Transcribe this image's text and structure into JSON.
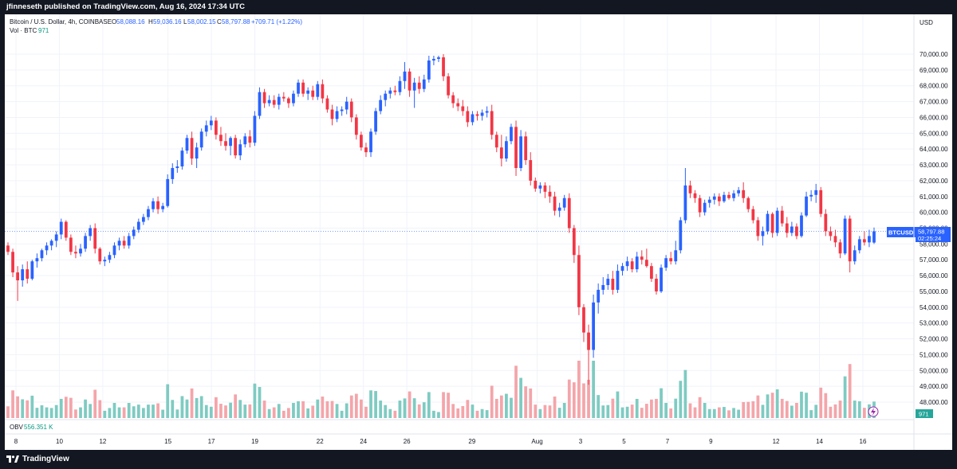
{
  "header": {
    "published": "jfinneseth published on TradingView.com, Aug 16, 2024 17:34 UTC"
  },
  "legend": {
    "symbol": "Bitcoin / U.S. Dollar, 4h, COINBASE",
    "o_label": "O",
    "o_value": "58,088.16",
    "h_label": "H",
    "h_value": "59,036.16",
    "l_label": "L",
    "l_value": "58,002.15",
    "c_label": "C",
    "c_value": "58,797.88",
    "change": "+709.71 (+1.22%)",
    "vol_label": "Vol · BTC",
    "vol_value": "971"
  },
  "price_axis": {
    "currency": "USD",
    "ticks": [
      "70,000.00",
      "69,000.00",
      "68,000.00",
      "67,000.00",
      "66,000.00",
      "65,000.00",
      "64,000.00",
      "63,000.00",
      "62,000.00",
      "61,000.00",
      "60,000.00",
      "59,000.00",
      "58,000.00",
      "57,000.00",
      "56,000.00",
      "55,000.00",
      "54,000.00",
      "53,000.00",
      "52,000.00",
      "51,000.00",
      "50,000.00",
      "49,000.00",
      "48,000.00"
    ],
    "last_symbol": "BTCUSD",
    "last_price": "58,797.88",
    "countdown": "02:25:24",
    "vol_badge": "971"
  },
  "obv": {
    "label": "OBV",
    "value": "556.351 K"
  },
  "time_axis": {
    "labels": [
      "8",
      "10",
      "12",
      "15",
      "17",
      "19",
      "22",
      "24",
      "26",
      "29",
      "Aug",
      "3",
      "5",
      "7",
      "9",
      "12",
      "14",
      "16"
    ]
  },
  "footer": {
    "brand": "TradingView"
  },
  "colors": {
    "up": "#2962ff",
    "down": "#f23645",
    "vol_up": "#7ecbc2",
    "vol_down": "#f4a5aa",
    "grid": "#f0f3fa",
    "text": "#131722",
    "legend_blue": "#2962ff",
    "obv_teal": "#089981"
  },
  "chart_data": {
    "type": "candlestick",
    "symbol": "BTCUSD",
    "interval": "4h",
    "x_start": "2024-07-07",
    "x_end": "2024-08-16",
    "ylim": [
      47500,
      71000
    ],
    "ohlc": [
      [
        57900,
        58100,
        57300,
        57500
      ],
      [
        57500,
        57700,
        55900,
        56200
      ],
      [
        56200,
        56600,
        54400,
        55700
      ],
      [
        55700,
        56700,
        55300,
        56400
      ],
      [
        56400,
        56900,
        55500,
        55800
      ],
      [
        55800,
        57000,
        55700,
        56900
      ],
      [
        56900,
        57400,
        56500,
        57100
      ],
      [
        57100,
        57700,
        56900,
        57600
      ],
      [
        57600,
        58100,
        57300,
        57900
      ],
      [
        57900,
        58300,
        57600,
        58200
      ],
      [
        58200,
        58800,
        57800,
        58600
      ],
      [
        58600,
        59600,
        58300,
        59400
      ],
      [
        59400,
        59500,
        58200,
        58400
      ],
      [
        58400,
        58600,
        57300,
        57500
      ],
      [
        57500,
        57900,
        57100,
        57400
      ],
      [
        57400,
        58000,
        57200,
        57700
      ],
      [
        57700,
        58700,
        57500,
        58500
      ],
      [
        58500,
        59200,
        58200,
        59000
      ],
      [
        59000,
        59300,
        57400,
        57700
      ],
      [
        57700,
        57800,
        56700,
        56900
      ],
      [
        56900,
        57200,
        56600,
        57000
      ],
      [
        57000,
        57500,
        56800,
        57300
      ],
      [
        57300,
        58100,
        57100,
        57900
      ],
      [
        57900,
        58400,
        57600,
        58200
      ],
      [
        58200,
        58500,
        57700,
        57900
      ],
      [
        57900,
        58700,
        57700,
        58500
      ],
      [
        58500,
        59100,
        58300,
        58900
      ],
      [
        58900,
        59600,
        58700,
        59400
      ],
      [
        59400,
        59900,
        59200,
        59700
      ],
      [
        59700,
        60400,
        59500,
        60200
      ],
      [
        60200,
        60900,
        60000,
        60700
      ],
      [
        60700,
        61000,
        59900,
        60200
      ],
      [
        60200,
        60600,
        60000,
        60400
      ],
      [
        60400,
        62400,
        60300,
        62100
      ],
      [
        62100,
        63100,
        61800,
        62800
      ],
      [
        62800,
        63300,
        62500,
        62900
      ],
      [
        62900,
        64100,
        62700,
        63900
      ],
      [
        63900,
        64900,
        63700,
        64700
      ],
      [
        64700,
        65100,
        63000,
        63400
      ],
      [
        63400,
        64400,
        62800,
        64100
      ],
      [
        64100,
        65300,
        63900,
        65100
      ],
      [
        65100,
        65800,
        64800,
        65500
      ],
      [
        65500,
        66100,
        65200,
        65800
      ],
      [
        65800,
        66000,
        64600,
        64900
      ],
      [
        64900,
        65400,
        64200,
        64500
      ],
      [
        64500,
        65000,
        63900,
        64200
      ],
      [
        64200,
        64800,
        63600,
        64700
      ],
      [
        64700,
        64900,
        63400,
        63600
      ],
      [
        63600,
        64600,
        63300,
        64300
      ],
      [
        64300,
        65000,
        64100,
        64800
      ],
      [
        64800,
        65200,
        64100,
        64400
      ],
      [
        64400,
        66400,
        64200,
        66100
      ],
      [
        66100,
        67900,
        65900,
        67600
      ],
      [
        67600,
        67800,
        66600,
        66900
      ],
      [
        66900,
        67400,
        66700,
        67100
      ],
      [
        67100,
        67400,
        66600,
        66800
      ],
      [
        66800,
        67500,
        66500,
        67300
      ],
      [
        67300,
        67600,
        67000,
        67200
      ],
      [
        67200,
        67300,
        66600,
        66900
      ],
      [
        66900,
        67700,
        66700,
        67500
      ],
      [
        67500,
        68400,
        67300,
        68200
      ],
      [
        68200,
        68400,
        67300,
        67500
      ],
      [
        67500,
        67900,
        67100,
        67700
      ],
      [
        67700,
        68000,
        67100,
        67300
      ],
      [
        67300,
        68300,
        67100,
        68100
      ],
      [
        68100,
        68400,
        66900,
        67200
      ],
      [
        67200,
        67400,
        66300,
        66500
      ],
      [
        66500,
        66800,
        65500,
        65900
      ],
      [
        65900,
        66700,
        65700,
        66400
      ],
      [
        66400,
        66700,
        66100,
        66500
      ],
      [
        66500,
        67300,
        66200,
        67000
      ],
      [
        67000,
        67200,
        65700,
        66000
      ],
      [
        66000,
        66200,
        64600,
        64900
      ],
      [
        64900,
        65100,
        63900,
        64100
      ],
      [
        64100,
        64400,
        63500,
        63800
      ],
      [
        63800,
        65300,
        63500,
        65100
      ],
      [
        65100,
        66600,
        64900,
        66400
      ],
      [
        66400,
        67400,
        66200,
        67100
      ],
      [
        67100,
        67700,
        66700,
        67500
      ],
      [
        67500,
        67900,
        67200,
        67700
      ],
      [
        67700,
        68000,
        67400,
        67600
      ],
      [
        67600,
        68600,
        67400,
        68300
      ],
      [
        68300,
        69500,
        67800,
        68900
      ],
      [
        68900,
        69100,
        67300,
        67700
      ],
      [
        67700,
        68500,
        66600,
        68200
      ],
      [
        68200,
        68600,
        67500,
        67800
      ],
      [
        67800,
        68700,
        67600,
        68400
      ],
      [
        68400,
        69900,
        68200,
        69600
      ],
      [
        69600,
        69900,
        69300,
        69700
      ],
      [
        69700,
        69900,
        69500,
        69800
      ],
      [
        69800,
        70000,
        68300,
        68600
      ],
      [
        68600,
        68800,
        67200,
        67400
      ],
      [
        67400,
        67600,
        66600,
        66900
      ],
      [
        66900,
        67200,
        66400,
        66700
      ],
      [
        66700,
        67100,
        66100,
        66400
      ],
      [
        66400,
        66700,
        65400,
        65700
      ],
      [
        65700,
        66400,
        65500,
        66200
      ],
      [
        66200,
        66400,
        65800,
        66100
      ],
      [
        66100,
        66500,
        65800,
        66300
      ],
      [
        66300,
        66700,
        66000,
        66400
      ],
      [
        66400,
        66800,
        64600,
        64900
      ],
      [
        64900,
        65100,
        63800,
        64100
      ],
      [
        64100,
        64900,
        62900,
        63400
      ],
      [
        63400,
        64800,
        63200,
        64500
      ],
      [
        64500,
        65600,
        64300,
        65400
      ],
      [
        65400,
        65800,
        62300,
        62800
      ],
      [
        62800,
        65200,
        62600,
        64800
      ],
      [
        64800,
        65100,
        63000,
        63300
      ],
      [
        63300,
        63800,
        61700,
        62000
      ],
      [
        62000,
        62200,
        61300,
        61500
      ],
      [
        61500,
        61900,
        61200,
        61700
      ],
      [
        61700,
        61900,
        60900,
        61300
      ],
      [
        61300,
        61700,
        60600,
        61000
      ],
      [
        61000,
        61300,
        59800,
        60100
      ],
      [
        60100,
        60600,
        59700,
        60300
      ],
      [
        60300,
        61100,
        60100,
        60900
      ],
      [
        60900,
        61200,
        58700,
        59000
      ],
      [
        59000,
        59200,
        56800,
        57300
      ],
      [
        57300,
        57900,
        53500,
        54000
      ],
      [
        54000,
        54200,
        51800,
        52400
      ],
      [
        52400,
        52900,
        49100,
        51300
      ],
      [
        51300,
        54800,
        50800,
        54300
      ],
      [
        54300,
        55500,
        53600,
        55100
      ],
      [
        55100,
        55900,
        54800,
        55400
      ],
      [
        55400,
        56100,
        55100,
        55800
      ],
      [
        55800,
        56300,
        54800,
        55100
      ],
      [
        55100,
        56700,
        54900,
        56300
      ],
      [
        56300,
        56800,
        56000,
        56600
      ],
      [
        56600,
        57200,
        56300,
        56900
      ],
      [
        56900,
        57100,
        56200,
        56400
      ],
      [
        56400,
        57500,
        56200,
        57200
      ],
      [
        57200,
        57600,
        56700,
        57000
      ],
      [
        57000,
        57700,
        56500,
        56600
      ],
      [
        56600,
        56800,
        55600,
        55800
      ],
      [
        55800,
        56100,
        54800,
        55000
      ],
      [
        55000,
        56700,
        54900,
        56500
      ],
      [
        56500,
        57300,
        56300,
        57100
      ],
      [
        57100,
        57500,
        56700,
        56900
      ],
      [
        56900,
        58200,
        56700,
        57600
      ],
      [
        57600,
        59700,
        57400,
        59500
      ],
      [
        59500,
        62800,
        59300,
        61700
      ],
      [
        61700,
        62000,
        60900,
        61200
      ],
      [
        61200,
        61400,
        60600,
        60900
      ],
      [
        60900,
        61100,
        59700,
        60000
      ],
      [
        60000,
        60800,
        59800,
        60600
      ],
      [
        60600,
        61000,
        60300,
        60800
      ],
      [
        60800,
        61200,
        60500,
        61000
      ],
      [
        61000,
        61200,
        60400,
        60700
      ],
      [
        60700,
        61300,
        60600,
        61100
      ],
      [
        61100,
        61300,
        60800,
        60900
      ],
      [
        60900,
        61400,
        60700,
        61200
      ],
      [
        61200,
        61600,
        61000,
        61400
      ],
      [
        61400,
        61900,
        60600,
        60900
      ],
      [
        60900,
        61000,
        60000,
        60200
      ],
      [
        60200,
        60400,
        59300,
        59500
      ],
      [
        59500,
        59700,
        58200,
        58500
      ],
      [
        58500,
        59100,
        57900,
        58800
      ],
      [
        58800,
        60100,
        58600,
        59900
      ],
      [
        59900,
        60000,
        58400,
        58700
      ],
      [
        58700,
        60300,
        58500,
        60100
      ],
      [
        60100,
        60400,
        59100,
        59300
      ],
      [
        59300,
        59700,
        58400,
        58700
      ],
      [
        58700,
        59400,
        58500,
        59100
      ],
      [
        59100,
        59300,
        58300,
        58500
      ],
      [
        58500,
        60000,
        58400,
        59800
      ],
      [
        59800,
        61300,
        59700,
        61000
      ],
      [
        61000,
        61400,
        60700,
        61100
      ],
      [
        61100,
        61800,
        60600,
        61400
      ],
      [
        61400,
        61600,
        59700,
        59900
      ],
      [
        59900,
        60200,
        58500,
        58800
      ],
      [
        58800,
        59100,
        58200,
        58500
      ],
      [
        58500,
        58900,
        57800,
        58100
      ],
      [
        58100,
        58300,
        57100,
        57400
      ],
      [
        57400,
        59800,
        57300,
        59600
      ],
      [
        59600,
        59800,
        56200,
        56900
      ],
      [
        56900,
        57900,
        56700,
        57600
      ],
      [
        57600,
        58500,
        57400,
        58300
      ],
      [
        58300,
        58800,
        57900,
        58100
      ],
      [
        58100,
        58900,
        57800,
        58500
      ],
      [
        58088.16,
        59036.16,
        58002.15,
        58797.88
      ]
    ]
  }
}
